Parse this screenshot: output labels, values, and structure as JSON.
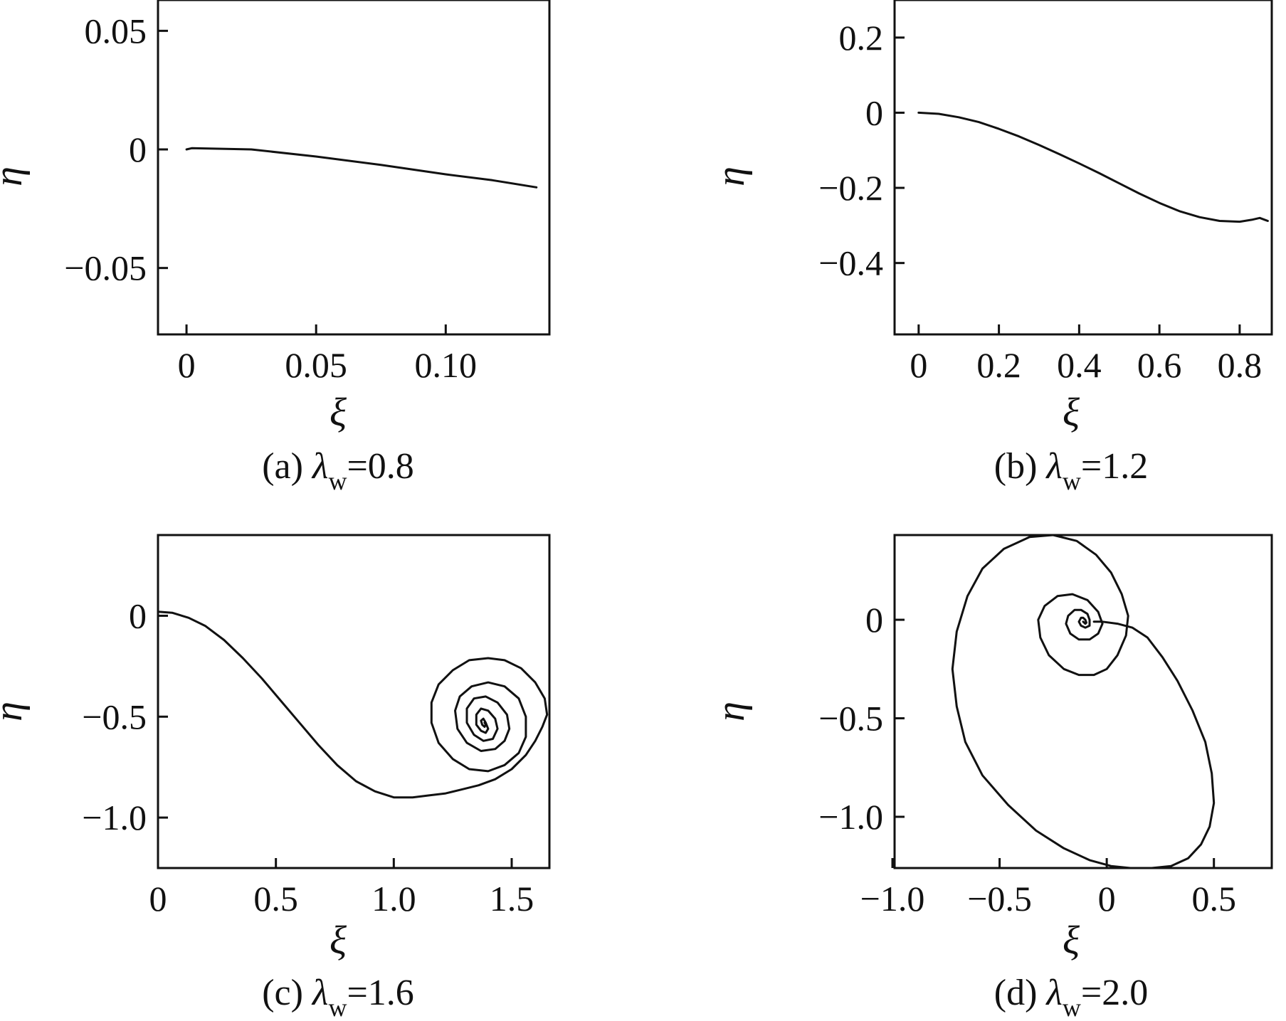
{
  "chart_data": [
    {
      "type": "line",
      "caption": {
        "prefix": "(a) ",
        "symbol": "λ",
        "subscript": "w",
        "value": "=0.8"
      },
      "xlabel": "ξ",
      "ylabel": "η",
      "xlim": [
        -0.011,
        0.14
      ],
      "ylim": [
        -0.078,
        0.063
      ],
      "xticks": [
        0,
        0.05,
        0.1
      ],
      "xtick_labels": [
        "0",
        "0.05",
        "0.10"
      ],
      "yticks": [
        0.05,
        0,
        -0.05
      ],
      "ytick_labels": [
        "0.05",
        "0",
        "−0.05"
      ],
      "grid": false,
      "series": [
        {
          "x": [
            0,
            0.002,
            0.025,
            0.05,
            0.075,
            0.1,
            0.118,
            0.135
          ],
          "y": [
            0,
            0.0005,
            0,
            -0.003,
            -0.0065,
            -0.0105,
            -0.013,
            -0.016
          ]
        }
      ]
    },
    {
      "type": "line",
      "caption": {
        "prefix": "(b) ",
        "symbol": "λ",
        "subscript": "w",
        "value": "=1.2"
      },
      "xlabel": "ξ",
      "ylabel": "η",
      "xlim": [
        -0.06,
        0.88
      ],
      "ylim": [
        -0.59,
        0.3
      ],
      "xticks": [
        0,
        0.2,
        0.4,
        0.6,
        0.8
      ],
      "xtick_labels": [
        "0",
        "0.2",
        "0.4",
        "0.6",
        "0.8"
      ],
      "yticks": [
        0.2,
        0,
        -0.2,
        -0.4
      ],
      "ytick_labels": [
        "0.2",
        "0",
        "−0.2",
        "−0.4"
      ],
      "grid": false,
      "series": [
        {
          "x": [
            0,
            0.05,
            0.1,
            0.15,
            0.2,
            0.25,
            0.3,
            0.35,
            0.4,
            0.45,
            0.5,
            0.55,
            0.6,
            0.65,
            0.7,
            0.75,
            0.8,
            0.83,
            0.85,
            0.87
          ],
          "y": [
            0,
            -0.003,
            -0.012,
            -0.025,
            -0.043,
            -0.063,
            -0.086,
            -0.11,
            -0.135,
            -0.161,
            -0.188,
            -0.215,
            -0.24,
            -0.262,
            -0.278,
            -0.288,
            -0.29,
            -0.285,
            -0.28,
            -0.288
          ]
        }
      ]
    },
    {
      "type": "line",
      "caption": {
        "prefix": "(c) ",
        "symbol": "λ",
        "subscript": "w",
        "value": "=1.6"
      },
      "xlabel": "ξ",
      "ylabel": "η",
      "xlim": [
        0,
        1.66
      ],
      "ylim": [
        -1.25,
        0.4
      ],
      "xticks": [
        0,
        0.5,
        1.0,
        1.5
      ],
      "xtick_labels": [
        "0",
        "0.5",
        "1.0",
        "1.5"
      ],
      "yticks": [
        0,
        -0.5,
        -1.0
      ],
      "ytick_labels": [
        "0",
        "−0.5",
        "−1.0"
      ],
      "grid": false,
      "series": [
        {
          "x": [
            0,
            0.06,
            0.13,
            0.2,
            0.28,
            0.36,
            0.44,
            0.52,
            0.6,
            0.68,
            0.76,
            0.84,
            0.92,
            1.0,
            1.08,
            1.15,
            1.22,
            1.29,
            1.36,
            1.43,
            1.5,
            1.56,
            1.6,
            1.63,
            1.65,
            1.64,
            1.6,
            1.54,
            1.47,
            1.4,
            1.32,
            1.25,
            1.19,
            1.16,
            1.16,
            1.19,
            1.25,
            1.32,
            1.4,
            1.47,
            1.53,
            1.56,
            1.56,
            1.53,
            1.47,
            1.4,
            1.33,
            1.28,
            1.26,
            1.27,
            1.31,
            1.37,
            1.43,
            1.47,
            1.49,
            1.48,
            1.44,
            1.39,
            1.34,
            1.31,
            1.31,
            1.34,
            1.38,
            1.42,
            1.44,
            1.43,
            1.4,
            1.37,
            1.35,
            1.35,
            1.37,
            1.39,
            1.4,
            1.39,
            1.38,
            1.37,
            1.375,
            1.385,
            1.39,
            1.385
          ],
          "y": [
            0.02,
            0.015,
            -0.01,
            -0.05,
            -0.12,
            -0.21,
            -0.31,
            -0.42,
            -0.53,
            -0.64,
            -0.74,
            -0.82,
            -0.87,
            -0.9,
            -0.9,
            -0.89,
            -0.88,
            -0.86,
            -0.84,
            -0.81,
            -0.76,
            -0.69,
            -0.62,
            -0.55,
            -0.49,
            -0.41,
            -0.33,
            -0.26,
            -0.22,
            -0.21,
            -0.22,
            -0.27,
            -0.34,
            -0.43,
            -0.53,
            -0.63,
            -0.71,
            -0.76,
            -0.77,
            -0.74,
            -0.68,
            -0.6,
            -0.5,
            -0.41,
            -0.35,
            -0.33,
            -0.35,
            -0.4,
            -0.47,
            -0.56,
            -0.63,
            -0.67,
            -0.66,
            -0.62,
            -0.56,
            -0.49,
            -0.43,
            -0.4,
            -0.41,
            -0.46,
            -0.53,
            -0.59,
            -0.62,
            -0.61,
            -0.56,
            -0.51,
            -0.47,
            -0.46,
            -0.49,
            -0.54,
            -0.57,
            -0.58,
            -0.56,
            -0.53,
            -0.51,
            -0.52,
            -0.54,
            -0.55,
            -0.54,
            -0.53
          ]
        }
      ]
    },
    {
      "type": "line",
      "caption": {
        "prefix": "(d) ",
        "symbol": "λ",
        "subscript": "w",
        "value": "=2.0"
      },
      "xlabel": "ξ",
      "ylabel": "η",
      "xlim": [
        -0.99,
        0.77
      ],
      "ylim": [
        -1.26,
        0.43
      ],
      "xticks": [
        -1.0,
        -0.5,
        0,
        0.5
      ],
      "xtick_labels": [
        "−1.0",
        "−0.5",
        "0",
        "0.5"
      ],
      "yticks": [
        0,
        -0.5,
        -1.0
      ],
      "ytick_labels": [
        "0",
        "−0.5",
        "−1.0"
      ],
      "grid": false,
      "series": [
        {
          "x": [
            -0.06,
            -0.02,
            0.05,
            0.12,
            0.19,
            0.26,
            0.33,
            0.4,
            0.46,
            0.49,
            0.5,
            0.48,
            0.44,
            0.38,
            0.3,
            0.21,
            0.11,
            0.02,
            -0.08,
            -0.2,
            -0.33,
            -0.46,
            -0.58,
            -0.66,
            -0.7,
            -0.72,
            -0.7,
            -0.65,
            -0.58,
            -0.48,
            -0.36,
            -0.25,
            -0.14,
            -0.05,
            0.02,
            0.07,
            0.1,
            0.09,
            0.05,
            0.0,
            -0.06,
            -0.13,
            -0.2,
            -0.27,
            -0.31,
            -0.32,
            -0.29,
            -0.23,
            -0.16,
            -0.09,
            -0.04,
            -0.02,
            -0.04,
            -0.08,
            -0.13,
            -0.17,
            -0.19,
            -0.18,
            -0.15,
            -0.12,
            -0.09,
            -0.08,
            -0.08,
            -0.1,
            -0.12,
            -0.13,
            -0.12,
            -0.11,
            -0.1,
            -0.095,
            -0.1,
            -0.11
          ],
          "y": [
            -0.01,
            -0.01,
            -0.02,
            -0.04,
            -0.09,
            -0.19,
            -0.31,
            -0.46,
            -0.62,
            -0.78,
            -0.93,
            -1.05,
            -1.14,
            -1.21,
            -1.25,
            -1.26,
            -1.26,
            -1.25,
            -1.22,
            -1.16,
            -1.07,
            -0.94,
            -0.79,
            -0.62,
            -0.44,
            -0.25,
            -0.06,
            0.12,
            0.26,
            0.36,
            0.42,
            0.43,
            0.4,
            0.33,
            0.24,
            0.13,
            0.02,
            -0.08,
            -0.18,
            -0.25,
            -0.28,
            -0.28,
            -0.25,
            -0.18,
            -0.09,
            0.0,
            0.07,
            0.12,
            0.13,
            0.1,
            0.04,
            -0.02,
            -0.07,
            -0.1,
            -0.1,
            -0.07,
            -0.02,
            0.02,
            0.05,
            0.05,
            0.03,
            0.0,
            -0.03,
            -0.04,
            -0.03,
            -0.01,
            0.01,
            0.01,
            0.0,
            -0.015,
            -0.02,
            -0.01
          ]
        }
      ]
    }
  ]
}
